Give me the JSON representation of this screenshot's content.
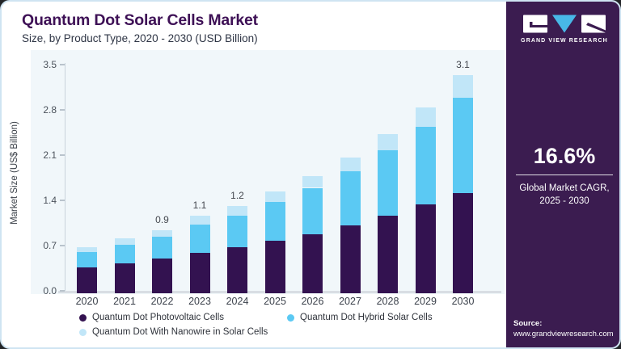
{
  "header": {
    "title": "Quantum Dot Solar Cells Market",
    "subtitle": "Size, by Product Type, 2020 - 2030 (USD Billion)"
  },
  "chart_data": {
    "type": "bar",
    "stacked": true,
    "title": "Quantum Dot Solar Cells Market Size, by Product Type, 2020 - 2030 (USD Billion)",
    "xlabel": "",
    "ylabel": "Market Size (US$ Billion)",
    "ylim": [
      0,
      3.5
    ],
    "yticks": [
      0.0,
      0.7,
      1.4,
      2.1,
      2.8,
      3.5
    ],
    "grid": false,
    "legend_position": "bottom",
    "categories": [
      "2020",
      "2021",
      "2022",
      "2023",
      "2024",
      "2025",
      "2026",
      "2027",
      "2028",
      "2029",
      "2030"
    ],
    "series": [
      {
        "name": "Quantum Dot Photovoltaic Cells",
        "color": "#331250",
        "values": [
          0.37,
          0.43,
          0.49,
          0.57,
          0.65,
          0.75,
          0.84,
          0.96,
          1.1,
          1.26,
          1.43
        ]
      },
      {
        "name": "Quantum Dot Hybrid Solar Cells",
        "color": "#5bc9f3",
        "values": [
          0.22,
          0.26,
          0.31,
          0.41,
          0.45,
          0.55,
          0.66,
          0.77,
          0.93,
          1.11,
          1.35
        ]
      },
      {
        "name": "Quantum Dot With Nanowire in Solar Cells",
        "color": "#c1e6f8",
        "values": [
          0.07,
          0.09,
          0.1,
          0.12,
          0.14,
          0.15,
          0.17,
          0.2,
          0.23,
          0.27,
          0.32
        ]
      }
    ],
    "totals": [
      0.66,
      0.78,
      0.9,
      1.1,
      1.24,
      1.45,
      1.67,
      1.93,
      2.26,
      2.64,
      3.1
    ],
    "total_labels": [
      "",
      "",
      "0.9",
      "1.1",
      "1.2",
      "",
      "",
      "",
      "",
      "",
      "3.1"
    ]
  },
  "sidebar": {
    "brand": "GRAND VIEW RESEARCH",
    "cagr_value": "16.6%",
    "cagr_line1": "Global Market CAGR,",
    "cagr_line2": "2025 - 2030",
    "source_label": "Source:",
    "source_url": "www.grandviewresearch.com"
  },
  "colors": {
    "title_text": "#3e1156",
    "sidebar_bg": "#3b1c50",
    "logo_triangle": "#48b8e7",
    "card_border": "#cfe4f2",
    "plot_bg": "#f1f7fa",
    "series_dark": "#331250",
    "series_mid_blue": "#5bc9f3",
    "series_light_blue": "#c1e6f8"
  }
}
